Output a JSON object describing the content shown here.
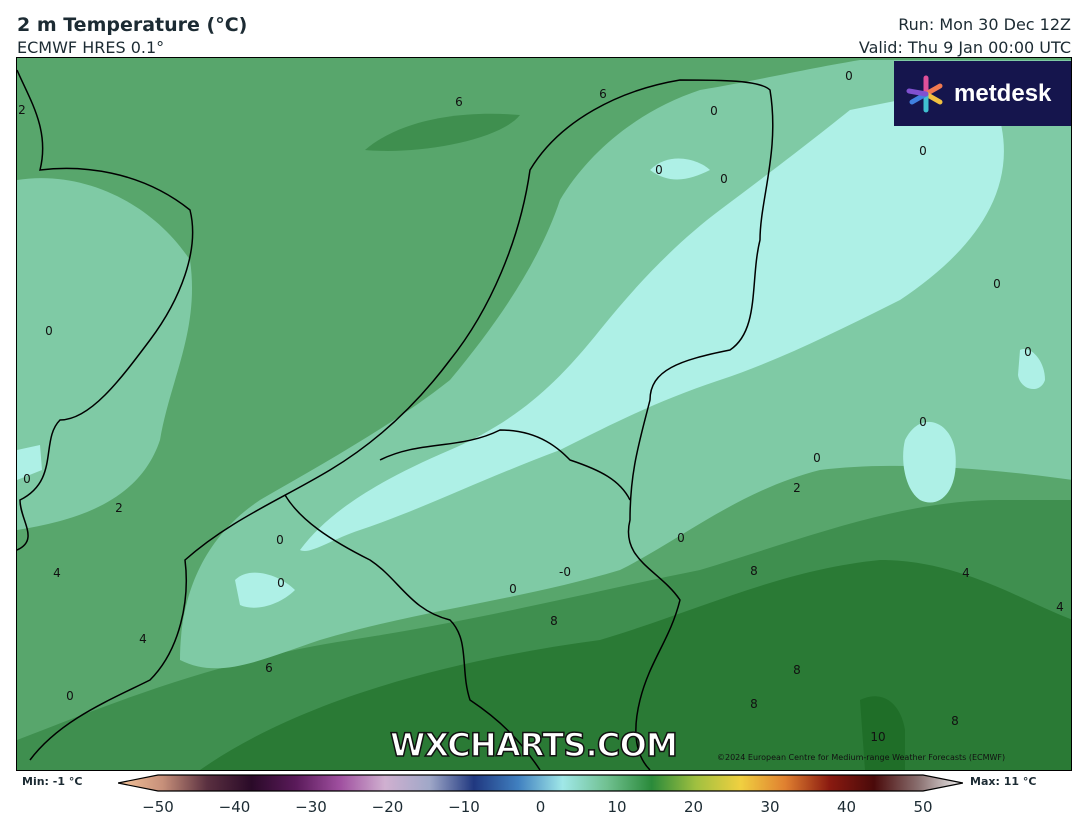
{
  "header": {
    "title": "2 m Temperature (°C)",
    "model": "ECMWF HRES 0.1°",
    "run": "Run: Mon 30 Dec 12Z",
    "valid": "Valid: Thu 9 Jan 00:00 UTC"
  },
  "logo": {
    "text": "metdesk"
  },
  "watermark": "WXCHARTS.COM",
  "copyright": "©2024 European Centre for Medium-range Weather Forecasts (ECMWF)",
  "colorbar": {
    "min_label": "Min: -1 °C",
    "max_label": "Max: 11 °C",
    "ticks": [
      "−50",
      "−40",
      "−30",
      "−20",
      "−10",
      "0",
      "10",
      "20",
      "30",
      "40",
      "50"
    ],
    "colors": [
      "#f5c49a",
      "#c7907a",
      "#5a3040",
      "#2a0a28",
      "#5a1a5a",
      "#a050a0",
      "#d0b0d0",
      "#a0a8c8",
      "#203880",
      "#4080c0",
      "#a0e8e8",
      "#70c090",
      "#2a8a3a",
      "#a0c040",
      "#f0d040",
      "#e08030",
      "#8a1a10",
      "#4a0a0a",
      "#8a7070",
      "#f0f0f0"
    ]
  },
  "map_colors": {
    "below_0": "#aef0e6",
    "0_to_2": "#7fcaa5",
    "2_to_6": "#58a66c",
    "6_to_8": "#3f8f4f",
    "above_8": "#2a7a35",
    "above_10": "#1f6e28"
  },
  "contour_labels": [
    "6",
    "6",
    "0",
    "0",
    "0",
    "0",
    "0",
    "0",
    "0",
    "0",
    "0",
    "0",
    "0",
    "2",
    "0",
    "0",
    "0",
    "-0",
    "0",
    "8",
    "8",
    "8",
    "8",
    "4",
    "4",
    "4",
    "4",
    "6",
    "10",
    "8",
    "2",
    "0",
    "2"
  ]
}
